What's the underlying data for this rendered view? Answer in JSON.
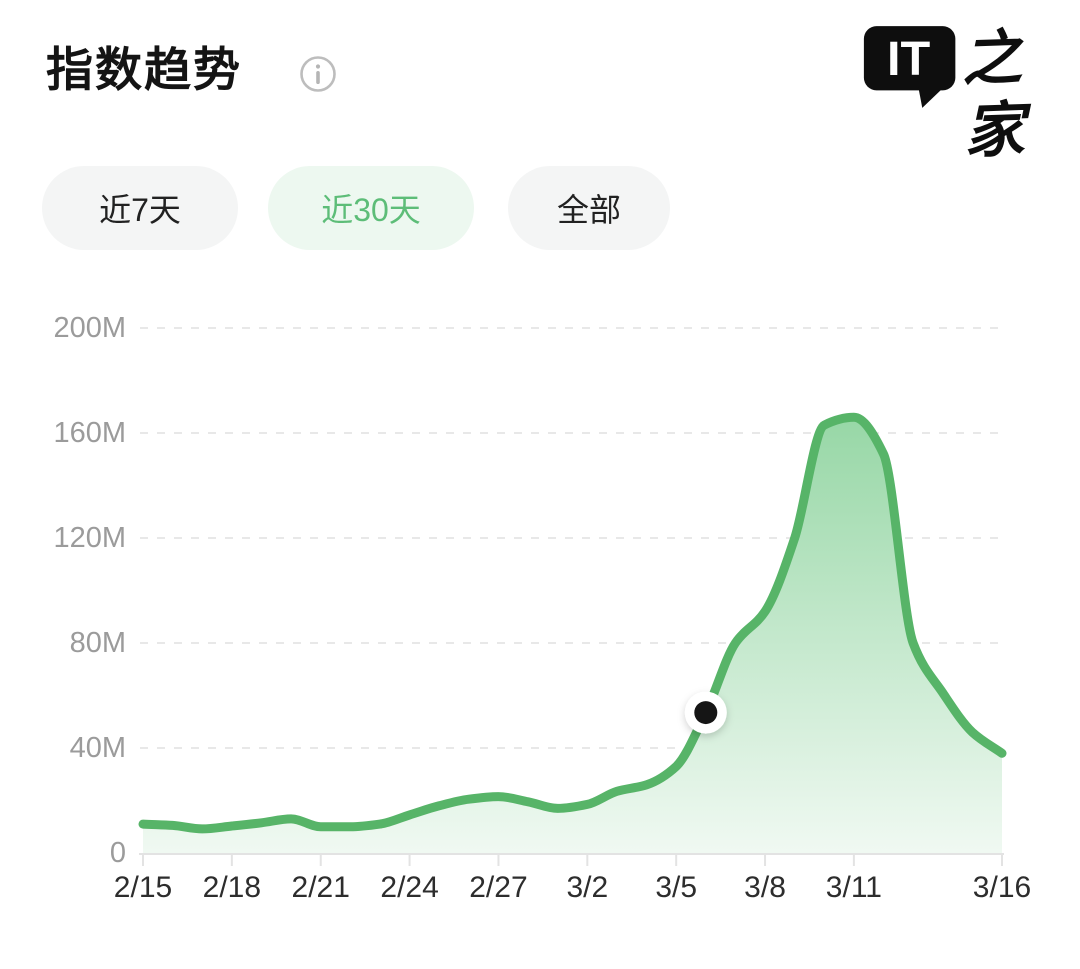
{
  "header": {
    "title": "指数趋势",
    "logo": {
      "bubble": "IT",
      "name": "之家"
    }
  },
  "filters": [
    {
      "label": "近7天",
      "active": false
    },
    {
      "label": "近30天",
      "active": true
    },
    {
      "label": "全部",
      "active": false
    }
  ],
  "colors": {
    "title_text": "#141414",
    "pill_inactive_bg": "#f4f5f5",
    "pill_inactive_text": "#212121",
    "pill_active_bg": "#edf8f0",
    "pill_active_text": "#5dbd78",
    "y_label": "#9b9b9b",
    "x_label": "#2d2d2d",
    "gridline": "#e8e8e8",
    "axis_line": "#e3e3e3",
    "logo_black": "#0e0e0e"
  },
  "chart_data": {
    "type": "area",
    "title": "指数趋势",
    "unit": "M (millions)",
    "x": [
      "2/15",
      "2/16",
      "2/17",
      "2/18",
      "2/19",
      "2/20",
      "2/21",
      "2/22",
      "2/23",
      "2/24",
      "2/25",
      "2/26",
      "2/27",
      "2/28",
      "3/1",
      "3/2",
      "3/3",
      "3/4",
      "3/5",
      "3/6",
      "3/7",
      "3/8",
      "3/9",
      "3/10",
      "3/11",
      "3/12",
      "3/13",
      "3/14",
      "3/15",
      "3/16"
    ],
    "values": [
      11,
      10.5,
      9.2,
      10.3,
      11.5,
      13,
      10,
      10,
      11,
      14.5,
      18,
      20.5,
      21.5,
      19.5,
      17,
      18.5,
      23.5,
      26,
      33,
      53.5,
      80,
      92,
      120,
      163,
      166,
      152,
      80,
      61,
      46,
      38
    ],
    "ylim": [
      0,
      200
    ],
    "y_ticks": [
      {
        "label": "200M",
        "value": 200
      },
      {
        "label": "160M",
        "value": 160
      },
      {
        "label": "120M",
        "value": 120
      },
      {
        "label": "80M",
        "value": 80
      },
      {
        "label": "40M",
        "value": 40
      },
      {
        "label": "0",
        "value": 0
      }
    ],
    "x_tick_labels": [
      "2/15",
      "2/18",
      "2/21",
      "2/24",
      "2/27",
      "3/2",
      "3/5",
      "3/8",
      "3/11",
      "3/16"
    ],
    "grid": "horizontal-dashed",
    "legend": "none",
    "highlight_point": {
      "x": "3/6",
      "value": 53.5,
      "index": 19
    },
    "line_color": "#57b468",
    "area_gradient_top": "#97d7a6",
    "area_gradient_bottom": "#f0f9f2"
  }
}
